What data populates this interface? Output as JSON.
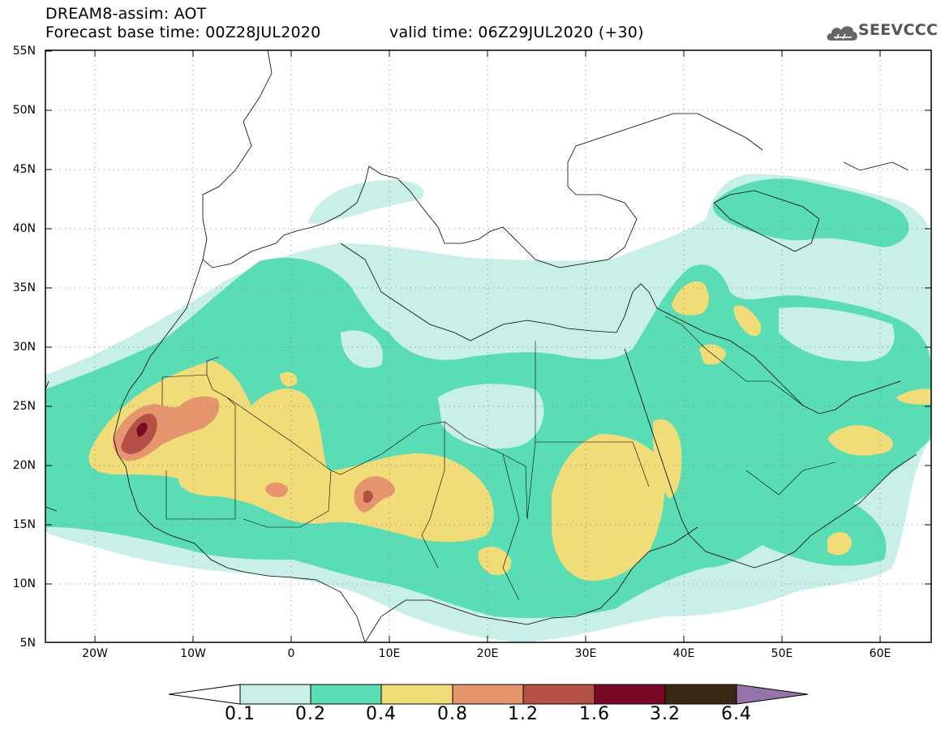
{
  "header": {
    "line1": "DREAM8-assim: AOT",
    "line2": "Forecast base time: 00Z28JUL2020",
    "valid": "valid time: 06Z29JUL2020 (+30)",
    "logo": "SEEVCCC"
  },
  "axes": {
    "lat_labels": [
      "55N",
      "50N",
      "45N",
      "40N",
      "35N",
      "30N",
      "25N",
      "20N",
      "15N",
      "10N",
      "5N"
    ],
    "lon_labels": [
      "20W",
      "10W",
      "0",
      "10E",
      "20E",
      "30E",
      "40E",
      "50E",
      "60E"
    ]
  },
  "legend": {
    "labels": [
      "0.1",
      "0.2",
      "0.4",
      "0.8",
      "1.2",
      "1.6",
      "3.2",
      "6.4"
    ],
    "colors": [
      "#ffffff",
      "#c8f0e8",
      "#5adcb4",
      "#f0dc78",
      "#e6966e",
      "#b45046",
      "#780a28",
      "#3c2814",
      "#9673aa"
    ]
  },
  "colors": {
    "c01": "#c8f0e8",
    "c02": "#5adcb4",
    "c04": "#f0dc78",
    "c08": "#e6966e",
    "c12": "#b45046",
    "c16": "#780a28"
  }
}
